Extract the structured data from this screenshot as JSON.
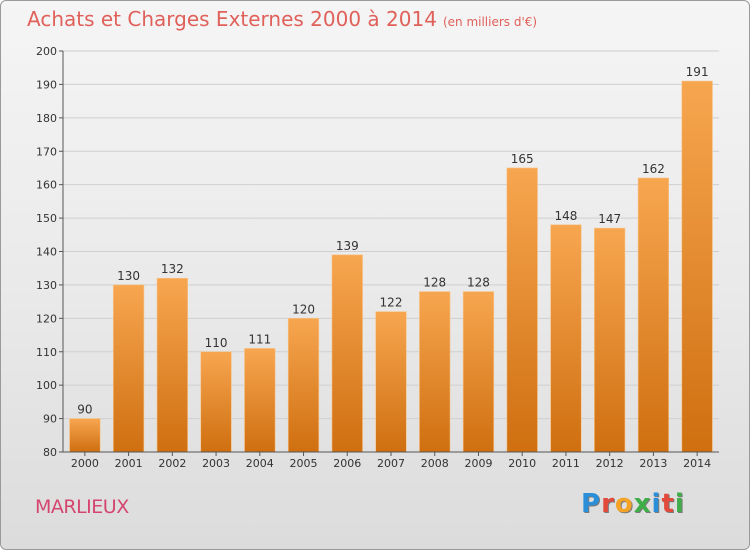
{
  "title": "Achats et Charges Externes 2000 à 2014",
  "subtitle": "(en milliers d'€)",
  "town": "MARLIEUX",
  "logo": {
    "letters": [
      "P",
      "r",
      "o",
      "x",
      "i",
      "t",
      "i"
    ],
    "colors": [
      "#2a8fd8",
      "#e24a3b",
      "#f4a326",
      "#3fae49",
      "#2a8fd8",
      "#e24a3b",
      "#3fae49"
    ]
  },
  "chart_data": {
    "type": "bar",
    "categories": [
      "2000",
      "2001",
      "2002",
      "2003",
      "2004",
      "2005",
      "2006",
      "2007",
      "2008",
      "2009",
      "2010",
      "2011",
      "2012",
      "2013",
      "2014"
    ],
    "values": [
      90,
      130,
      132,
      110,
      111,
      120,
      139,
      122,
      128,
      128,
      165,
      148,
      147,
      162,
      191
    ],
    "title": "Achats et Charges Externes 2000 à 2014",
    "subtitle": "(en milliers d'€)",
    "ylim": [
      80,
      200
    ],
    "yticks": [
      80,
      90,
      100,
      110,
      120,
      130,
      140,
      150,
      160,
      170,
      180,
      190,
      200
    ],
    "grid": true,
    "bar_color_top": "#f7a650",
    "bar_color_bottom": "#cf6f10"
  }
}
